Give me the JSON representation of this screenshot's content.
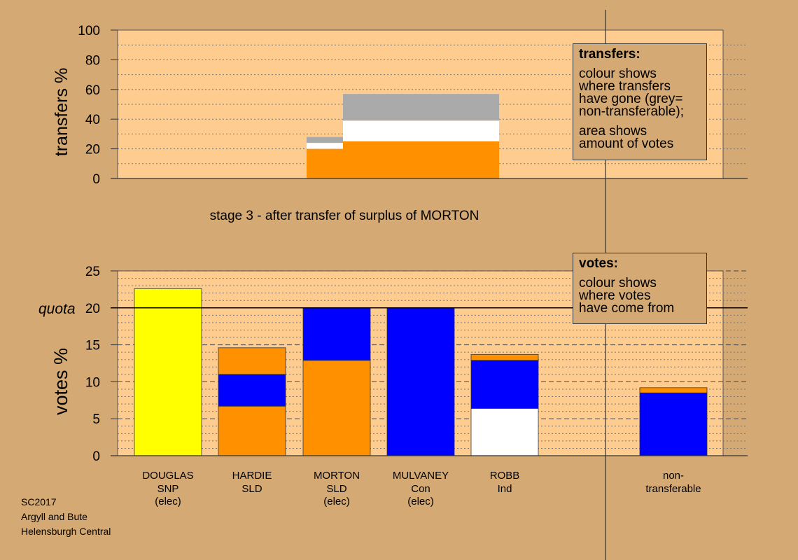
{
  "colors": {
    "background": "#d4a973",
    "plot_background": "#ffcc8f",
    "SNP": "#ffff00",
    "SLD": "#ff9100",
    "Con": "#0000ff",
    "Ind": "#ffffff",
    "non_transferable": "#aaaaaa"
  },
  "top_panel": {
    "ylabel": "transfers %",
    "caption": "stage 3 - after transfer of surplus of MORTON",
    "info_box": {
      "title": "transfers:",
      "lines_a": [
        "colour shows",
        "where transfers",
        "have gone (grey=",
        "non-transferable);"
      ],
      "lines_b": [
        "area shows",
        "amount of votes"
      ]
    }
  },
  "bottom_panel": {
    "ylabel": "votes %",
    "quota_label": "quota",
    "info_box": {
      "title": "votes:",
      "lines": [
        "colour shows",
        "where votes",
        "have come from"
      ]
    }
  },
  "footer": {
    "line1": "SC2017",
    "line2": "Argyll and Bute",
    "line3": "Helensburgh Central"
  },
  "chart_data": [
    {
      "type": "bar",
      "title": "stage 3 - after transfer of surplus of MORTON",
      "ylabel": "transfers %",
      "ylim": [
        0,
        100
      ],
      "yticks": [
        0,
        20,
        40,
        60,
        80,
        100
      ],
      "grid": true,
      "transfer_blocks": [
        {
          "x_range": [
            "MORTON",
            "MORTON"
          ],
          "segments": [
            {
              "party": "SLD",
              "value": 20
            },
            {
              "party": "Ind",
              "value": 4
            },
            {
              "party": "non_transferable",
              "value": 4
            }
          ]
        },
        {
          "x_range": [
            "MULVANEY",
            "ROBB"
          ],
          "segments": [
            {
              "party": "SLD",
              "value": 25
            },
            {
              "party": "Ind",
              "value": 14
            },
            {
              "party": "non_transferable",
              "value": 18
            }
          ]
        }
      ]
    },
    {
      "type": "bar",
      "ylabel": "votes %",
      "ylim": [
        0,
        25
      ],
      "yticks": [
        0,
        5,
        10,
        15,
        20,
        25
      ],
      "quota": 20,
      "grid": true,
      "candidates": [
        {
          "name": "DOUGLAS",
          "party": "SNP",
          "status": "(elec)",
          "segments": [
            {
              "party": "SNP",
              "value": 22.6
            }
          ]
        },
        {
          "name": "HARDIE",
          "party": "SLD",
          "status": "",
          "segments": [
            {
              "party": "SLD",
              "value": 6.7
            },
            {
              "party": "Con",
              "value": 4.3
            },
            {
              "party": "SLD",
              "value": 3.6
            }
          ]
        },
        {
          "name": "MORTON",
          "party": "SLD",
          "status": "(elec)",
          "segments": [
            {
              "party": "SLD",
              "value": 12.9
            },
            {
              "party": "Con",
              "value": 7.1
            }
          ]
        },
        {
          "name": "MULVANEY",
          "party": "Con",
          "status": "(elec)",
          "segments": [
            {
              "party": "Con",
              "value": 20.0
            }
          ]
        },
        {
          "name": "ROBB",
          "party": "Ind",
          "status": "",
          "segments": [
            {
              "party": "Ind",
              "value": 6.4
            },
            {
              "party": "Con",
              "value": 6.5
            },
            {
              "party": "SLD",
              "value": 0.8
            }
          ]
        },
        {
          "name": "non-",
          "party": "transferable",
          "status": "",
          "segments": [
            {
              "party": "Con",
              "value": 8.5
            },
            {
              "party": "SLD",
              "value": 0.7
            }
          ]
        }
      ]
    }
  ]
}
